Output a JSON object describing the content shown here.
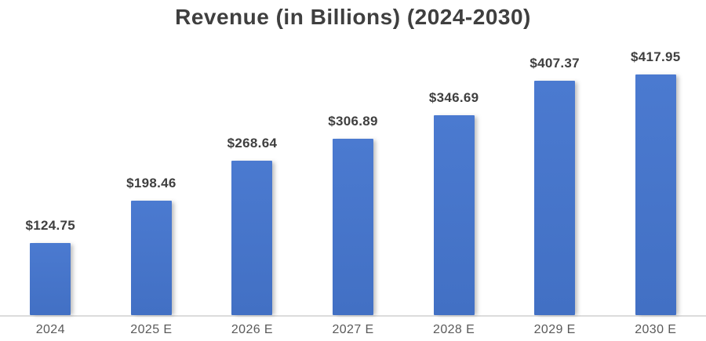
{
  "title": "Revenue (in Billions) (2024-2030)",
  "chart_data": {
    "type": "bar",
    "title": "Revenue (in Billions) (2024-2030)",
    "categories": [
      "2024",
      "2025 E",
      "2026 E",
      "2027 E",
      "2028 E",
      "2029 E",
      "2030 E"
    ],
    "values": [
      124.75,
      198.46,
      268.64,
      306.89,
      346.69,
      407.37,
      417.95
    ],
    "data_labels": [
      "$124.75",
      "$198.46",
      "$268.64",
      "$306.89",
      "$346.69",
      "$407.37",
      "$417.95"
    ],
    "xlabel": "",
    "ylabel": "",
    "ylim": [
      0,
      440
    ],
    "grid": false,
    "legend_position": "none",
    "series_name": "Revenue"
  },
  "colors": {
    "bar": "#4573C8",
    "title_text": "#3F3F3F",
    "data_label_text": "#3F3F3F",
    "axis_label_text": "#5A5A5A",
    "axis_line": "#DCDCDC",
    "background": "#FFFFFF"
  }
}
